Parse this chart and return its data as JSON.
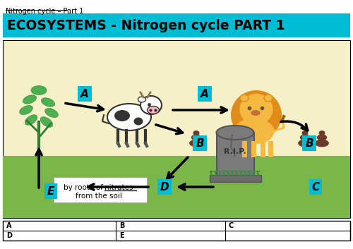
{
  "title": "ECOSYSTEMS - Nitrogen cycle PART 1",
  "subtitle": "Nitrogen cycle – Part 1",
  "bg_color": "#f5f0c8",
  "grass_color": "#7ab648",
  "cyan_color": "#00bcd4",
  "title_bg": "#00bcd4",
  "white": "#ffffff",
  "black": "#000000",
  "text_line1": "by roots of ",
  "text_nitrates": "nitrates",
  "text_line2": "from the soil",
  "table_labels": [
    "A",
    "B",
    "C",
    "D",
    "E"
  ],
  "poop_color": "#6b3a2a",
  "grave_color": "#7a7a7a",
  "grave_dark": "#555555",
  "lion_mane": "#e08c1a",
  "lion_body": "#f5b942",
  "leaf_fill": "#4caf50",
  "leaf_edge": "#388e3c"
}
